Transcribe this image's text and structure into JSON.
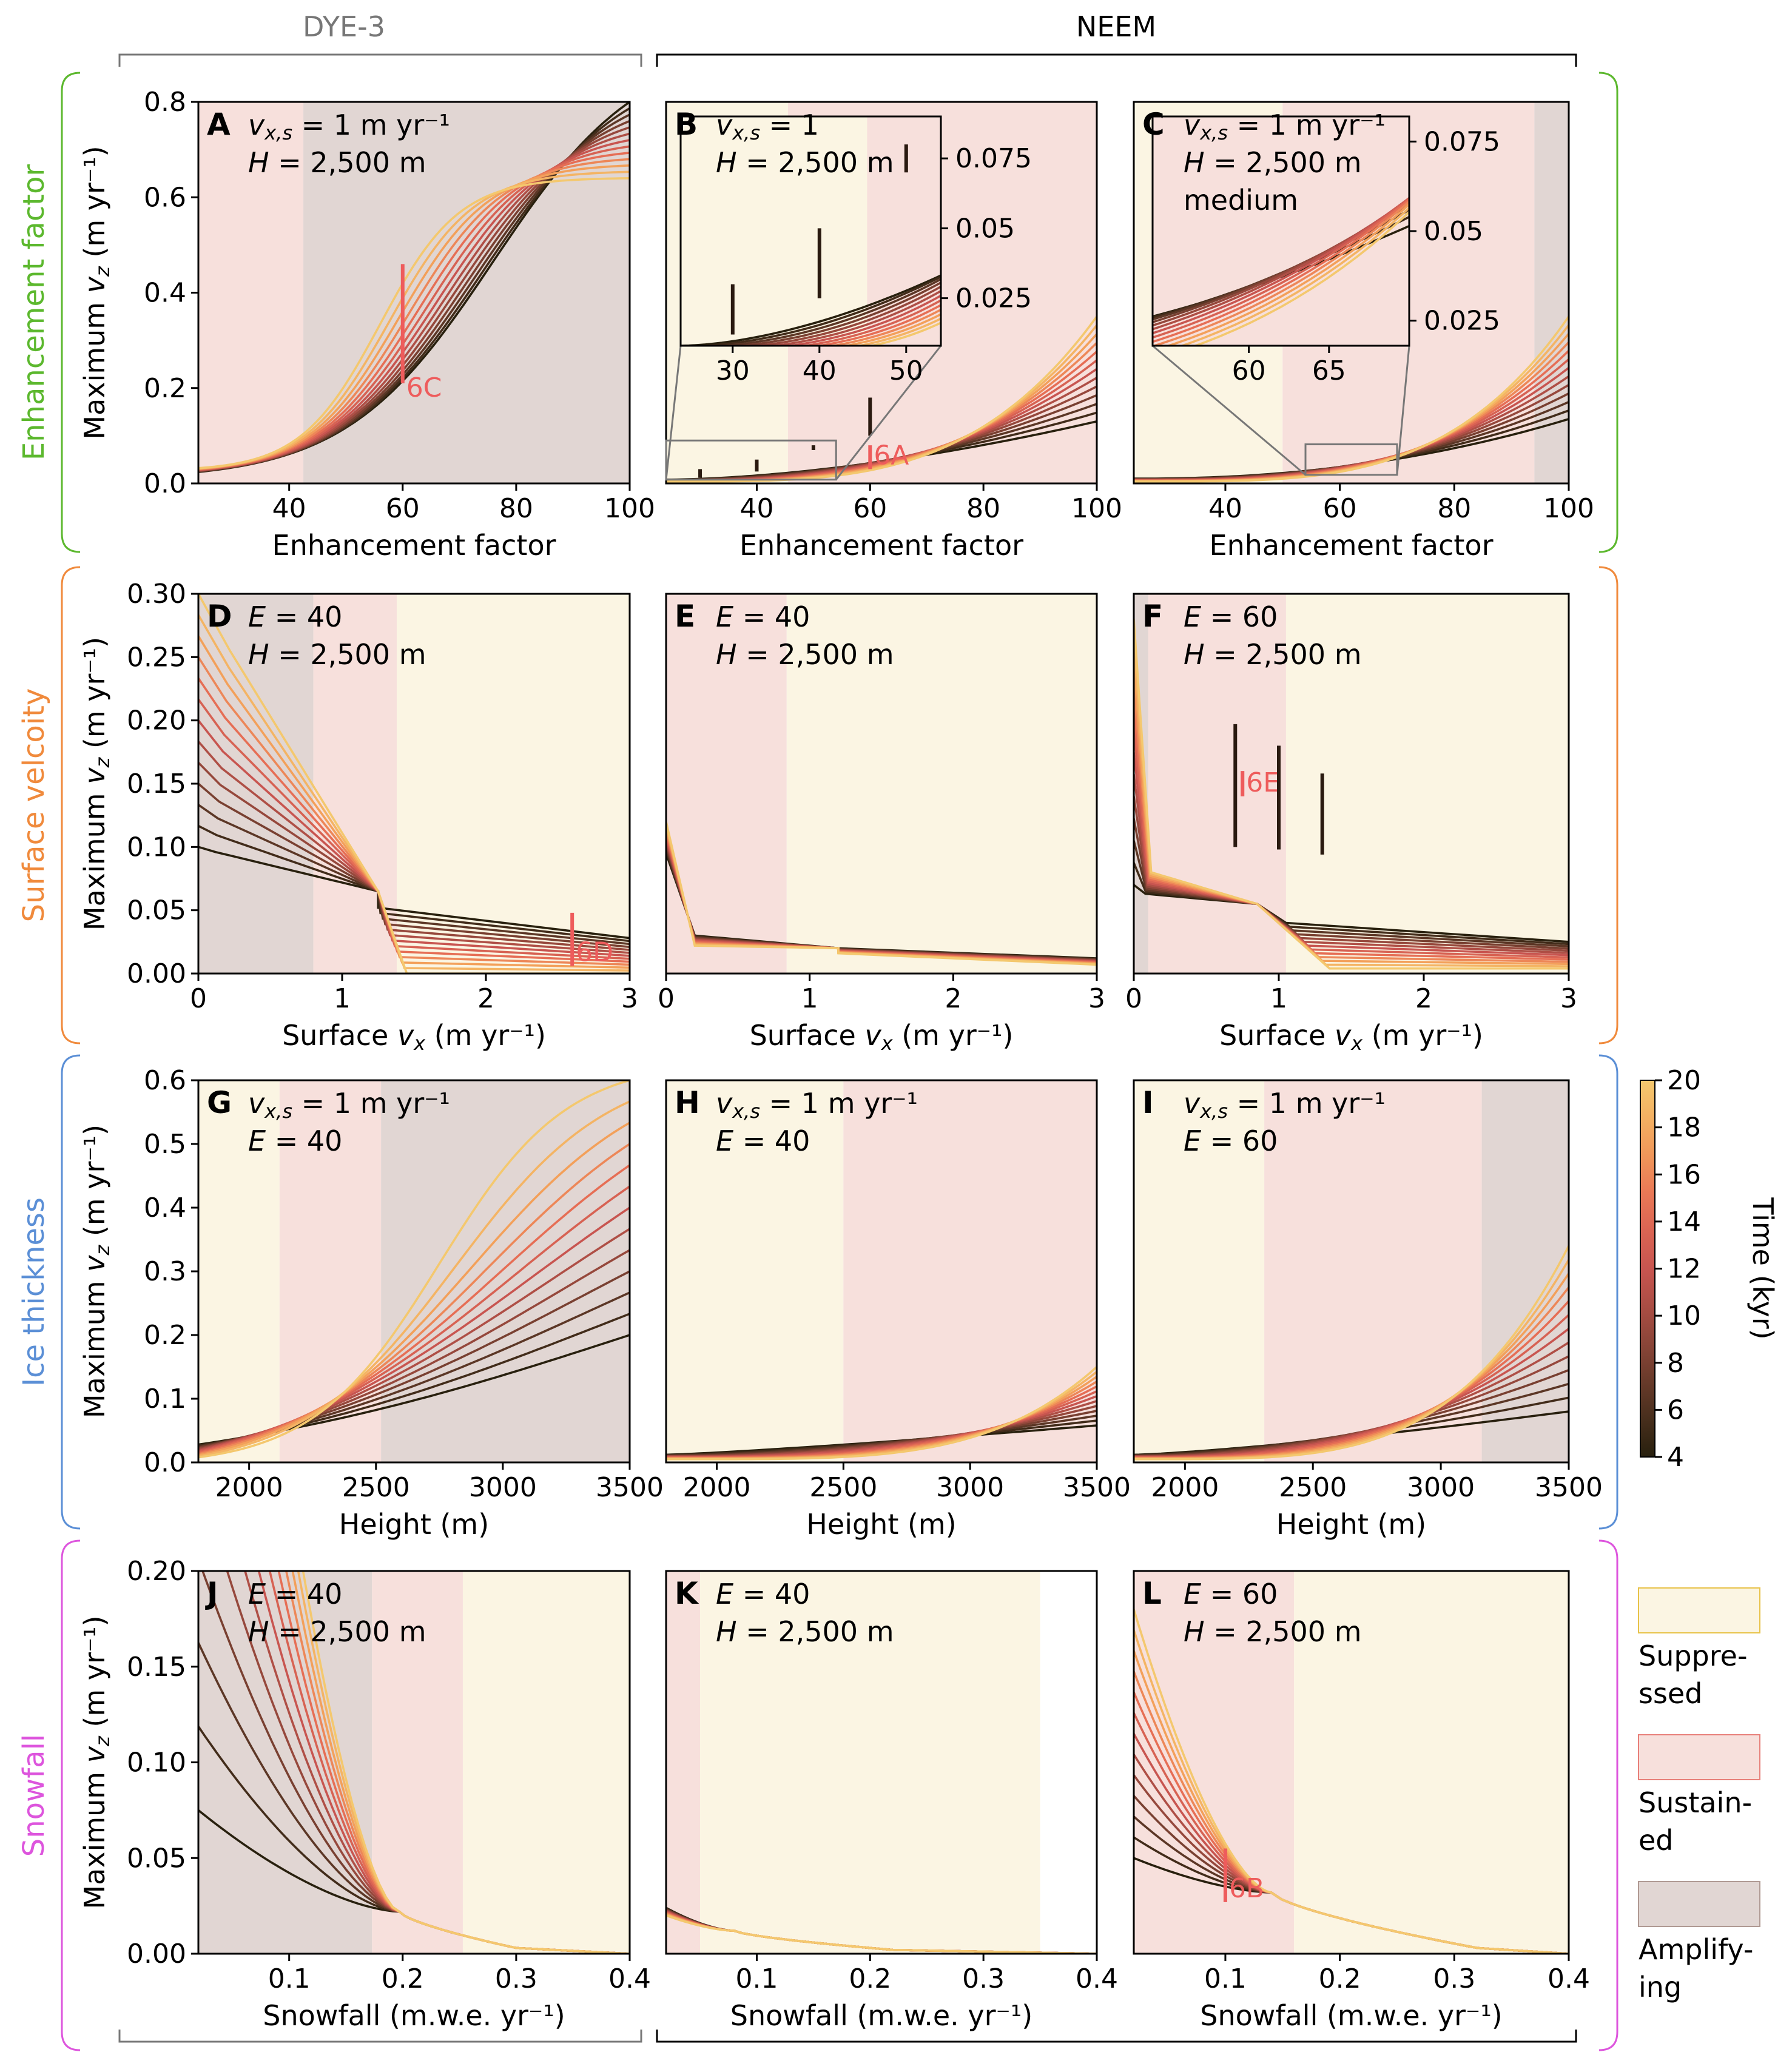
{
  "colors": {
    "suppressed": "#fbf5e3",
    "suppressed_edge": "#e8c34a",
    "sustained": "#f7e0dc",
    "sustained_edge": "#e8807a",
    "amplifying": "#e1d6d3",
    "amplifying_edge": "#b09a94",
    "marker": "#ee5c5c",
    "row_brackets": [
      "#5cb82e",
      "#f08a3c",
      "#5b8fd6",
      "#dd55dd"
    ]
  },
  "header": {
    "dye3": "DYE-3",
    "neem": "NEEM"
  },
  "row_labels": [
    "Enhancement factor",
    "Surface velcoity",
    "Ice thickness",
    "Snowfall"
  ],
  "ylabel": {
    "prefix": "Maximum ",
    "v": "v",
    "sub": "z",
    "units": "(m yr⁻¹)"
  },
  "xlabels": {
    "enh": "Enhancement factor",
    "vx": {
      "prefix": "Surface ",
      "v": "v",
      "sub": "x",
      "units": "(m yr⁻¹)"
    },
    "height": "Height  (m)",
    "snow": "Snowfall  (m.w.e. yr⁻¹)"
  },
  "colorbar": {
    "label": "Time (kyr)",
    "ticks": [
      4,
      6,
      8,
      10,
      12,
      14,
      16,
      18,
      20
    ],
    "min": 4,
    "max": 20
  },
  "legend": [
    {
      "key": "suppressed",
      "lines": [
        "Suppre-",
        "ssed"
      ]
    },
    {
      "key": "sustained",
      "lines": [
        "Sustain-",
        "ed"
      ]
    },
    {
      "key": "amplifying",
      "lines": [
        "Amplify-",
        "ing"
      ]
    }
  ],
  "chart_data": [
    {
      "id": "A",
      "type": "line",
      "xlabel": "Enhancement factor",
      "ylabel": "Maximum vz (m yr⁻¹)",
      "xlim": [
        24,
        100
      ],
      "ylim": [
        0,
        0.8
      ],
      "xticks": [
        "40",
        "60",
        "80",
        "100"
      ],
      "yticks": [
        "0.0",
        "0.2",
        "0.4",
        "0.6",
        "0.8"
      ],
      "annotation": [
        "vx,s = 1 m yr⁻¹",
        "H = 2,500 m"
      ],
      "regions": [
        {
          "from": 24,
          "to": 42.5,
          "kind": "sustained"
        },
        {
          "from": 42.5,
          "to": 100,
          "kind": "amplifying"
        }
      ],
      "curves": {
        "shape": "sigmoid",
        "x0": 24,
        "x1": 100,
        "y0": [
          0.024,
          0.032
        ],
        "y_end": [
          0.8,
          0.64
        ],
        "mid": [
          76,
          56
        ],
        "width": [
          13,
          7
        ]
      },
      "markers": [
        {
          "x": 60,
          "y0": 0.21,
          "y1": 0.46,
          "label": "6C"
        }
      ]
    },
    {
      "id": "B",
      "type": "line",
      "xlabel": "Enhancement factor",
      "xlim": [
        24,
        100
      ],
      "ylim": [
        0,
        0.8
      ],
      "xticks": [
        "40",
        "60",
        "80",
        "100"
      ],
      "annotation": [
        "vx,s = 1",
        "H = 2,500 m"
      ],
      "regions": [
        {
          "from": 24,
          "to": 45.5,
          "kind": "suppressed"
        },
        {
          "from": 45.5,
          "to": 100,
          "kind": "sustained"
        }
      ],
      "curves": {
        "shape": "power",
        "x0": 24,
        "x1": 100,
        "y0": [
          0.008,
          0.004
        ],
        "y_end": [
          0.13,
          0.35
        ],
        "power": [
          1.7,
          3.6
        ]
      },
      "markers": [
        {
          "x": 30,
          "y0": 0.012,
          "y1": 0.03
        },
        {
          "x": 40,
          "y0": 0.025,
          "y1": 0.05
        },
        {
          "x": 50,
          "y0": 0.07,
          "y1": 0.08
        },
        {
          "x": 60,
          "y0": 0.1,
          "y1": 0.18
        },
        {
          "x": 60,
          "y0": 0.03,
          "y1": 0.08,
          "label": "6A"
        }
      ],
      "inset": {
        "xlim": [
          24,
          54
        ],
        "ylim": [
          0.008,
          0.09
        ],
        "xticks": [
          "30",
          "40",
          "50"
        ],
        "yticks": [
          "0.025",
          "0.05",
          "0.075"
        ],
        "box": {
          "y0": 0.008,
          "y1": 0.09
        }
      }
    },
    {
      "id": "C",
      "type": "line",
      "xlabel": "Enhancement factor",
      "xlim": [
        24,
        100
      ],
      "ylim": [
        0,
        0.8
      ],
      "xticks": [
        "40",
        "60",
        "80",
        "100"
      ],
      "annotation": [
        "vx,s = 1 m yr⁻¹",
        "H = 2,500 m",
        "medium"
      ],
      "regions": [
        {
          "from": 24,
          "to": 50,
          "kind": "suppressed"
        },
        {
          "from": 50,
          "to": 94,
          "kind": "sustained"
        },
        {
          "from": 94,
          "to": 100,
          "kind": "amplifying"
        }
      ],
      "curves": {
        "shape": "power",
        "x0": 24,
        "x1": 100,
        "y0": [
          0.01,
          0.004
        ],
        "y_end": [
          0.135,
          0.35
        ],
        "power": [
          2.2,
          3.8
        ]
      },
      "inset": {
        "xlim": [
          54,
          70
        ],
        "ylim": [
          0.018,
          0.082
        ],
        "xticks": [
          "60",
          "65"
        ],
        "yticks": [
          "0.025",
          "0.05",
          "0.075"
        ],
        "box": {
          "y0": 0.018,
          "y1": 0.082
        }
      }
    },
    {
      "id": "D",
      "type": "line",
      "xlabel": "Surface vx (m yr⁻¹)",
      "ylabel": "Maximum vz (m yr⁻¹)",
      "xlim": [
        0,
        3
      ],
      "ylim": [
        0,
        0.3
      ],
      "xticks": [
        "0",
        "1",
        "2",
        "3"
      ],
      "yticks": [
        "0.00",
        "0.05",
        "0.10",
        "0.15",
        "0.20",
        "0.25",
        "0.30"
      ],
      "annotation": [
        "E = 40",
        "H = 2,500 m"
      ],
      "regions": [
        {
          "from": 0,
          "to": 0.8,
          "kind": "amplifying"
        },
        {
          "from": 0.8,
          "to": 1.38,
          "kind": "sustained"
        },
        {
          "from": 1.38,
          "to": 3,
          "kind": "suppressed"
        }
      ],
      "curves": {
        "shape": "knee",
        "x_knee": [
          0.12,
          0.22
        ],
        "y_start": [
          0.1,
          0.3
        ],
        "y_knee": [
          0.096,
          0.255
        ],
        "x_pin": 1.25,
        "y_pin": 0.065,
        "x_drop": [
          1.25,
          1.45
        ],
        "y_drop": [
          0.052,
          0.0
        ],
        "y_end": [
          0.028,
          0.0
        ]
      },
      "markers": [
        {
          "x": 2.6,
          "y0": 0.006,
          "y1": 0.048,
          "label": "6D"
        }
      ]
    },
    {
      "id": "E",
      "type": "line",
      "xlabel": "Surface vx (m yr⁻¹)",
      "xlim": [
        0,
        3
      ],
      "ylim": [
        0,
        0.3
      ],
      "xticks": [
        "0",
        "1",
        "2",
        "3"
      ],
      "annotation": [
        "E = 40",
        "H = 2,500 m"
      ],
      "regions": [
        {
          "from": 0,
          "to": 0.84,
          "kind": "sustained"
        },
        {
          "from": 0.84,
          "to": 3,
          "kind": "suppressed"
        }
      ],
      "curves": {
        "shape": "knee",
        "x_knee": [
          0.2,
          0.2
        ],
        "y_start": [
          0.095,
          0.12
        ],
        "y_knee": [
          0.03,
          0.022
        ],
        "x_pin": 1.2,
        "y_pin": 0.02,
        "x_drop": [
          1.2,
          1.2
        ],
        "y_drop": [
          0.02,
          0.016
        ],
        "y_end": [
          0.012,
          0.007
        ]
      }
    },
    {
      "id": "F",
      "type": "line",
      "xlabel": "Surface vx (m yr⁻¹)",
      "xlim": [
        0,
        3
      ],
      "ylim": [
        0,
        0.3
      ],
      "xticks": [
        "0",
        "1",
        "2",
        "3"
      ],
      "annotation": [
        "E = 60",
        "H = 2,500 m"
      ],
      "regions": [
        {
          "from": 0,
          "to": 0.1,
          "kind": "amplifying"
        },
        {
          "from": 0.1,
          "to": 1.05,
          "kind": "sustained"
        },
        {
          "from": 1.05,
          "to": 3,
          "kind": "suppressed"
        }
      ],
      "curves": {
        "shape": "knee",
        "x_knee": [
          0.08,
          0.12
        ],
        "y_start": [
          0.07,
          0.28
        ],
        "y_knee": [
          0.063,
          0.08
        ],
        "x_pin": 0.85,
        "y_pin": 0.055,
        "x_drop": [
          1.05,
          1.35
        ],
        "y_drop": [
          0.04,
          0.004
        ],
        "y_end": [
          0.025,
          0.004
        ]
      },
      "markers": [
        {
          "x": 0.7,
          "y0": 0.1,
          "y1": 0.197
        },
        {
          "x": 0.75,
          "y0": 0.14,
          "y1": 0.16,
          "label": "6E"
        },
        {
          "x": 1.0,
          "y0": 0.098,
          "y1": 0.18
        },
        {
          "x": 1.3,
          "y0": 0.094,
          "y1": 0.158
        }
      ]
    },
    {
      "id": "G",
      "type": "line",
      "xlabel": "Height (m)",
      "ylabel": "Maximum vz (m yr⁻¹)",
      "xlim": [
        1800,
        3500
      ],
      "ylim": [
        0,
        0.6
      ],
      "xticks": [
        "2000",
        "2500",
        "3000",
        "3500"
      ],
      "yticks": [
        "0.0",
        "0.1",
        "0.2",
        "0.3",
        "0.4",
        "0.5",
        "0.6"
      ],
      "annotation": [
        "vx,s = 1 m yr⁻¹",
        "E = 40"
      ],
      "regions": [
        {
          "from": 1800,
          "to": 2120,
          "kind": "suppressed"
        },
        {
          "from": 2120,
          "to": 2520,
          "kind": "sustained"
        },
        {
          "from": 2520,
          "to": 3500,
          "kind": "amplifying"
        }
      ],
      "curves": {
        "shape": "sigmoid",
        "x0": 1800,
        "x1": 3500,
        "y0": [
          0.028,
          0.008
        ],
        "y_end": [
          0.2,
          0.6
        ],
        "mid": [
          3500,
          2750
        ],
        "width": [
          900,
          250
        ]
      }
    },
    {
      "id": "H",
      "type": "line",
      "xlabel": "Height (m)",
      "xlim": [
        1800,
        3500
      ],
      "ylim": [
        0,
        0.6
      ],
      "xticks": [
        "2000",
        "2500",
        "3000",
        "3500"
      ],
      "annotation": [
        "vx,s = 1 m yr⁻¹",
        "E = 40"
      ],
      "regions": [
        {
          "from": 1800,
          "to": 2500,
          "kind": "suppressed"
        },
        {
          "from": 2500,
          "to": 3500,
          "kind": "sustained"
        }
      ],
      "curves": {
        "shape": "power",
        "x0": 1800,
        "x1": 3500,
        "y0": [
          0.012,
          0.005
        ],
        "y_end": [
          0.058,
          0.15
        ],
        "power": [
          1.2,
          4.2
        ]
      }
    },
    {
      "id": "I",
      "type": "line",
      "xlabel": "Height (m)",
      "xlim": [
        1800,
        3500
      ],
      "ylim": [
        0,
        0.6
      ],
      "xticks": [
        "2000",
        "2500",
        "3000",
        "3500"
      ],
      "annotation": [
        "vx,s = 1 m yr⁻¹",
        "E = 60"
      ],
      "regions": [
        {
          "from": 1800,
          "to": 2310,
          "kind": "suppressed"
        },
        {
          "from": 2310,
          "to": 3160,
          "kind": "sustained"
        },
        {
          "from": 3160,
          "to": 3500,
          "kind": "amplifying"
        }
      ],
      "curves": {
        "shape": "power",
        "x0": 1800,
        "x1": 3500,
        "y0": [
          0.012,
          0.005
        ],
        "y_end": [
          0.08,
          0.34
        ],
        "power": [
          1.3,
          4.0
        ]
      }
    },
    {
      "id": "J",
      "type": "line",
      "xlabel": "Snowfall (m.w.e. yr⁻¹)",
      "ylabel": "Maximum vz (m yr⁻¹)",
      "xlim": [
        0.02,
        0.4
      ],
      "ylim": [
        0,
        0.2
      ],
      "xticks": [
        "0.1",
        "0.2",
        "0.3",
        "0.4"
      ],
      "yticks": [
        "0.00",
        "0.05",
        "0.10",
        "0.15",
        "0.20"
      ],
      "annotation": [
        "E = 40",
        "H = 2,500 m"
      ],
      "regions": [
        {
          "from": 0.02,
          "to": 0.173,
          "kind": "amplifying"
        },
        {
          "from": 0.173,
          "to": 0.253,
          "kind": "sustained"
        },
        {
          "from": 0.253,
          "to": 0.4,
          "kind": "suppressed"
        }
      ],
      "curves": {
        "shape": "decay",
        "pivot": [
          0.197,
          0.022
        ],
        "y_start": [
          0.075,
          0.6
        ],
        "drop_to": 0.3,
        "y_drop": 0.003,
        "y_end": 0.0
      }
    },
    {
      "id": "K",
      "type": "line",
      "xlabel": "Snowfall (m.w.e. yr⁻¹)",
      "xlim": [
        0.02,
        0.4
      ],
      "ylim": [
        0,
        0.2
      ],
      "xticks": [
        "0.1",
        "0.2",
        "0.3",
        "0.4"
      ],
      "annotation": [
        "E = 40",
        "H = 2,500 m"
      ],
      "regions": [
        {
          "from": 0.02,
          "to": 0.05,
          "kind": "sustained"
        },
        {
          "from": 0.05,
          "to": 0.35,
          "kind": "suppressed"
        }
      ],
      "curves": {
        "shape": "decay",
        "pivot": [
          0.08,
          0.012
        ],
        "y_start": [
          0.024,
          0.02
        ],
        "drop_to": 0.22,
        "y_drop": 0.002,
        "y_end": 0.0
      }
    },
    {
      "id": "L",
      "type": "line",
      "xlabel": "Snowfall (m.w.e. yr⁻¹)",
      "xlim": [
        0.02,
        0.4
      ],
      "ylim": [
        0,
        0.2
      ],
      "xticks": [
        "0.1",
        "0.2",
        "0.3",
        "0.4"
      ],
      "annotation": [
        "E = 60",
        "H = 2,500 m"
      ],
      "regions": [
        {
          "from": 0.02,
          "to": 0.16,
          "kind": "sustained"
        },
        {
          "from": 0.16,
          "to": 0.4,
          "kind": "suppressed"
        }
      ],
      "curves": {
        "shape": "decay",
        "pivot": [
          0.14,
          0.032
        ],
        "y_start": [
          0.05,
          0.18
        ],
        "drop_to": 0.32,
        "y_drop": 0.003,
        "y_end": 0.0
      },
      "markers": [
        {
          "x": 0.1,
          "y0": 0.027,
          "y1": 0.055,
          "label": "6B"
        }
      ]
    }
  ]
}
